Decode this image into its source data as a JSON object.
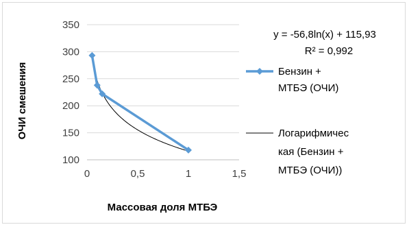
{
  "chart_data": {
    "type": "scatter",
    "title": "",
    "xlabel": "Массовая доля МТБЭ",
    "ylabel": "ОЧИ смешения",
    "xlim": [
      0,
      1.5
    ],
    "ylim": [
      100,
      350
    ],
    "xticks": [
      "0",
      "0,5",
      "1",
      "1,5"
    ],
    "yticks": [
      "100",
      "150",
      "200",
      "250",
      "300",
      "350"
    ],
    "grid": "horizontal",
    "legend_position": "right",
    "series": [
      {
        "name": "Бензин + МТБЭ (ОЧИ)",
        "legend_lines": [
          "Бензин +",
          "МТБЭ (ОЧИ)"
        ],
        "color": "#5b9bd5",
        "marker": "diamond",
        "x": [
          0.05,
          0.1,
          0.15,
          1.0
        ],
        "y": [
          293,
          238,
          222,
          118
        ]
      },
      {
        "name": "Логарифмическая (Бензин + МТБЭ (ОЧИ))",
        "legend_lines": [
          "Логарифмичес",
          "кая (Бензин +",
          "МТБЭ (ОЧИ))"
        ],
        "color": "#000000",
        "type": "trendline-log",
        "a": -56.8,
        "b": 115.93,
        "x_range": [
          0.05,
          1.0
        ]
      }
    ],
    "annotations": {
      "equation": "y = -56,8ln(x) + 115,93",
      "r_squared": "R² = 0,992"
    }
  }
}
